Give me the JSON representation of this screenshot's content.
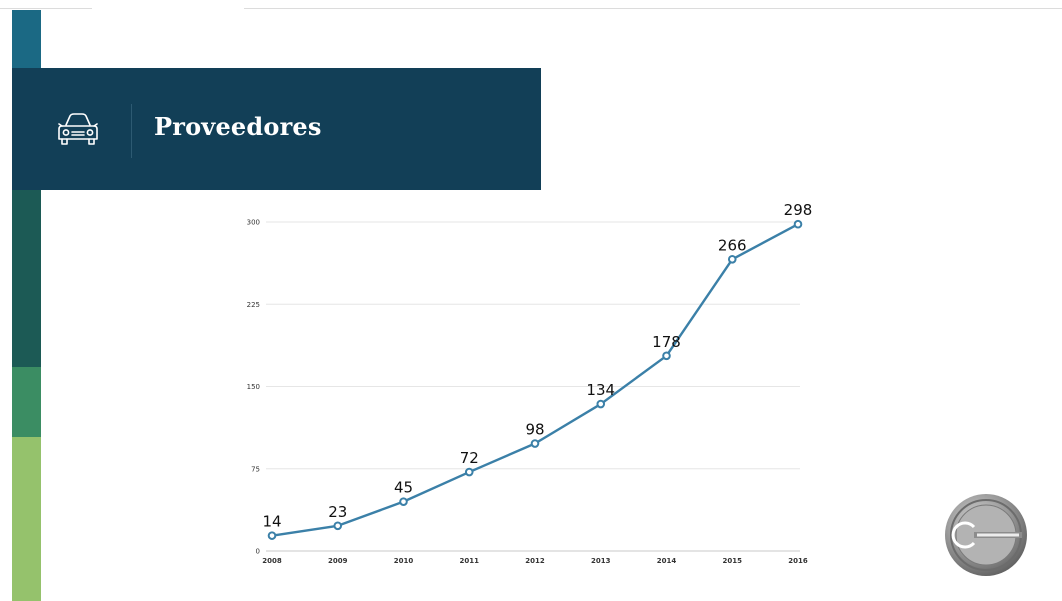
{
  "header": {
    "title": "Proveedores",
    "icon": "car-icon",
    "background": "#123f57"
  },
  "sidebar": {
    "colors": [
      "#1b6984",
      "#1c5a55",
      "#3b8d63",
      "#95c26c"
    ]
  },
  "logo": {
    "icon": "company-seal-logo"
  },
  "chart_data": {
    "type": "line",
    "categories": [
      "2008",
      "2009",
      "2010",
      "2011",
      "2012",
      "2013",
      "2014",
      "2015",
      "2016"
    ],
    "series": [
      {
        "values": [
          14,
          23,
          45,
          72,
          98,
          134,
          178,
          266,
          298
        ],
        "color": "#3b80a8"
      }
    ],
    "yticks": [
      "0",
      "75",
      "150",
      "225",
      "300"
    ],
    "ylim": [
      0,
      300
    ],
    "grid": true,
    "data_labels": true
  }
}
